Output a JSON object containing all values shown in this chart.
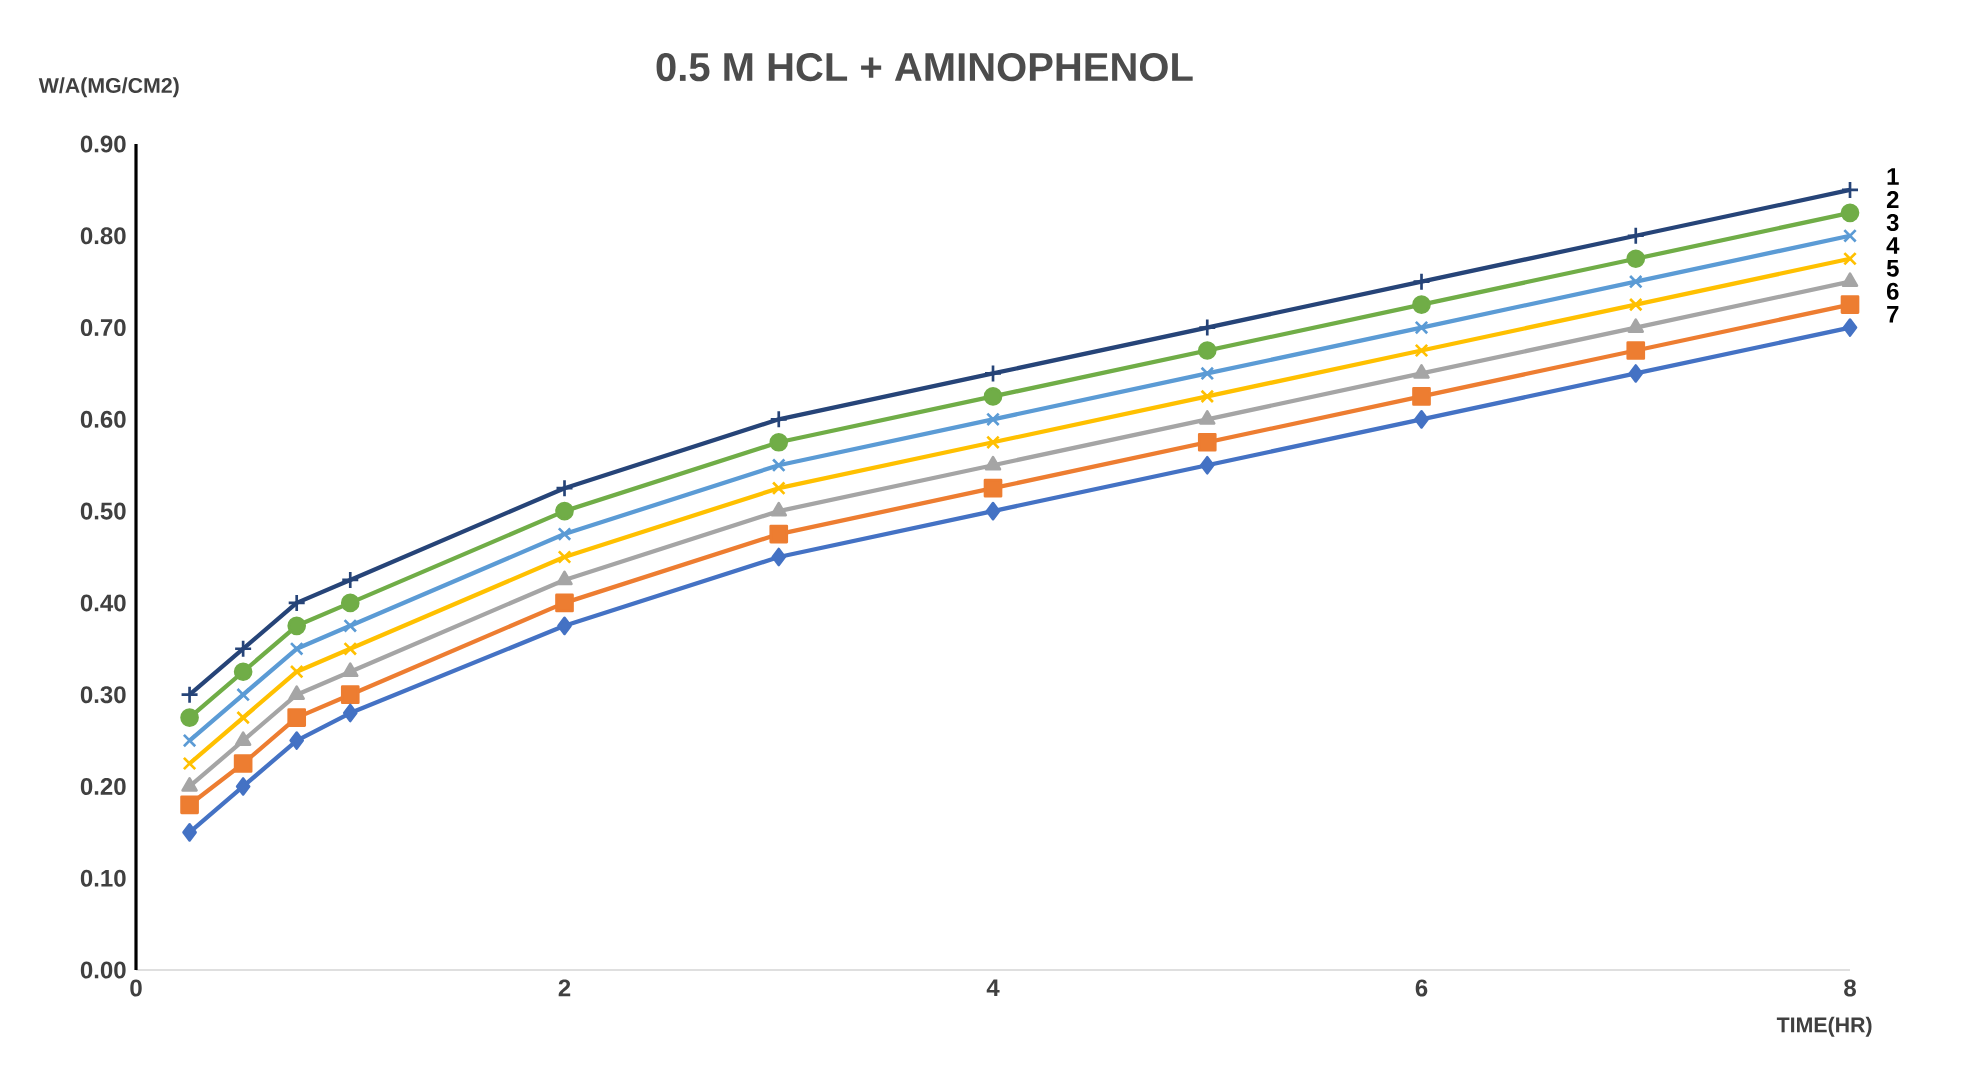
{
  "chart_data": {
    "type": "line",
    "title": "0.5 M HCL + AMINOPHENOL",
    "xlabel": "TIME(HR)",
    "ylabel": "W/A(MG/CM2)",
    "x": [
      0.25,
      0.5,
      0.75,
      1,
      2,
      3,
      4,
      5,
      6,
      7,
      8
    ],
    "xlim": [
      0,
      8
    ],
    "xticks": [
      0,
      2,
      4,
      6,
      8
    ],
    "ylim": [
      0,
      0.9
    ],
    "yticks": [
      {
        "value": 0,
        "label": "0.00"
      },
      {
        "value": 0.1,
        "label": "0.10"
      },
      {
        "value": 0.2,
        "label": "0.20"
      },
      {
        "value": 0.3,
        "label": "0.30"
      },
      {
        "value": 0.4,
        "label": "0.40"
      },
      {
        "value": 0.5,
        "label": "0.50"
      },
      {
        "value": 0.6,
        "label": "0.60"
      },
      {
        "value": 0.7,
        "label": "0.70"
      },
      {
        "value": 0.8,
        "label": "0.80"
      },
      {
        "value": 0.9,
        "label": "0.90"
      }
    ],
    "grid": false,
    "legend": false,
    "line_style": "solid",
    "series": [
      {
        "name": "1",
        "color": "#264478",
        "marker": "plus",
        "values": [
          0.3,
          0.35,
          0.4,
          0.425,
          0.525,
          0.6,
          0.65,
          0.7,
          0.75,
          0.8,
          0.85
        ]
      },
      {
        "name": "2",
        "color": "#70ad47",
        "marker": "circle",
        "values": [
          0.275,
          0.325,
          0.375,
          0.4,
          0.5,
          0.575,
          0.625,
          0.675,
          0.725,
          0.775,
          0.825
        ]
      },
      {
        "name": "3",
        "color": "#5b9bd5",
        "marker": "cross",
        "values": [
          0.25,
          0.3,
          0.35,
          0.375,
          0.475,
          0.55,
          0.6,
          0.65,
          0.7,
          0.75,
          0.8
        ]
      },
      {
        "name": "4",
        "color": "#ffc000",
        "marker": "cross",
        "values": [
          0.225,
          0.275,
          0.325,
          0.35,
          0.45,
          0.525,
          0.575,
          0.625,
          0.675,
          0.725,
          0.775
        ]
      },
      {
        "name": "5",
        "color": "#a5a5a5",
        "marker": "triangle",
        "values": [
          0.2,
          0.25,
          0.3,
          0.325,
          0.425,
          0.5,
          0.55,
          0.6,
          0.65,
          0.7,
          0.75
        ]
      },
      {
        "name": "6",
        "color": "#ed7d31",
        "marker": "square",
        "values": [
          0.18,
          0.225,
          0.275,
          0.3,
          0.4,
          0.475,
          0.525,
          0.575,
          0.625,
          0.675,
          0.725
        ]
      },
      {
        "name": "7",
        "color": "#4472c4",
        "marker": "diamond",
        "values": [
          0.15,
          0.2,
          0.25,
          0.28,
          0.375,
          0.45,
          0.5,
          0.55,
          0.6,
          0.65,
          0.7
        ]
      }
    ]
  }
}
